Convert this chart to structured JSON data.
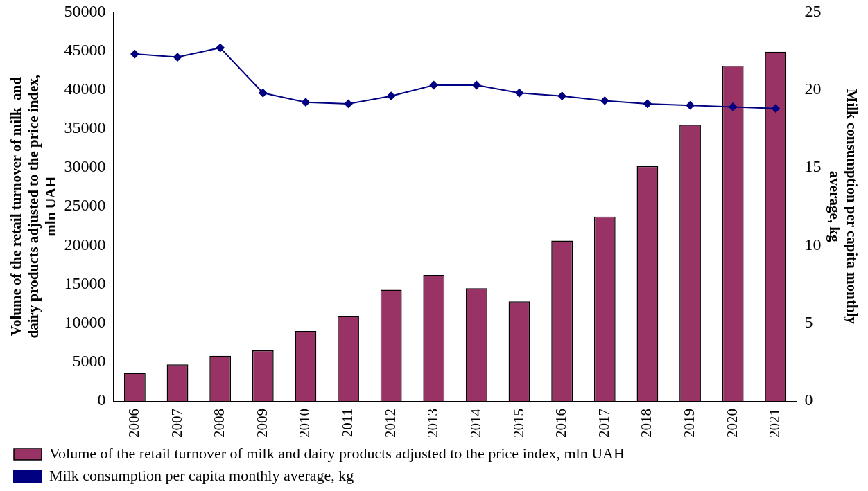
{
  "chart_data": {
    "type": "bar",
    "categories": [
      "2006",
      "2007",
      "2008",
      "2009",
      "2010",
      "2011",
      "2012",
      "2013",
      "2014",
      "2015",
      "2016",
      "2017",
      "2018",
      "2019",
      "2020",
      "2021"
    ],
    "ylabel": "Volume of the retail turnover of milk  and dairy products adjusted to the price index, mln UAH",
    "y2label": "Milk consumption per capita monthly average, kg",
    "ylim": [
      0,
      50000
    ],
    "yticks": [
      0,
      5000,
      10000,
      15000,
      20000,
      25000,
      30000,
      35000,
      40000,
      45000,
      50000
    ],
    "y2lim": [
      0,
      25
    ],
    "y2ticks": [
      0,
      5,
      10,
      15,
      20,
      25
    ],
    "grid": false,
    "legend": "bottom",
    "marker": "diamond",
    "line_style": "solid",
    "series": [
      {
        "name": "Volume of the retail turnover of milk and dairy products adjusted to the price index, mln UAH",
        "color": "#993366",
        "values": [
          3600,
          4700,
          5800,
          6500,
          9000,
          10900,
          14300,
          16200,
          14500,
          12800,
          20600,
          23700,
          30200,
          35500,
          43100,
          44900
        ]
      },
      {
        "name": "Milk consumption per capita monthly average, kg",
        "type": "line",
        "axis": "y2",
        "color": "#000080",
        "values": [
          22.3,
          22.1,
          22.7,
          19.8,
          19.2,
          19.1,
          19.6,
          20.3,
          20.3,
          19.8,
          19.6,
          19.3,
          19.1,
          19.0,
          18.9,
          18.8
        ]
      }
    ]
  }
}
